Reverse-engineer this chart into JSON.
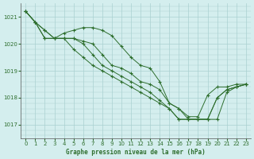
{
  "title": "Graphe pression niveau de la mer (hPa)",
  "bg_color": "#d4eeee",
  "grid_color": "#aad0d0",
  "line_color": "#2d6e2d",
  "marker_color": "#2d6e2d",
  "xlim": [
    -0.5,
    23.5
  ],
  "ylim": [
    1016.5,
    1021.5
  ],
  "yticks": [
    1017,
    1018,
    1019,
    1020,
    1021
  ],
  "xticks": [
    0,
    1,
    2,
    3,
    4,
    5,
    6,
    7,
    8,
    9,
    10,
    11,
    12,
    13,
    14,
    15,
    16,
    17,
    18,
    19,
    20,
    21,
    22,
    23
  ],
  "series": [
    [
      1021.2,
      1020.8,
      1020.5,
      1020.2,
      1020.4,
      1020.5,
      1020.6,
      1020.6,
      1020.5,
      1020.3,
      1019.9,
      1019.5,
      1019.2,
      1019.1,
      1018.6,
      1017.8,
      1017.6,
      1017.3,
      1017.3,
      1018.1,
      1018.4,
      1018.4,
      1018.5,
      1018.5
    ],
    [
      1021.2,
      1020.8,
      1020.5,
      1020.2,
      1020.2,
      1020.2,
      1020.1,
      1020.0,
      1019.6,
      1019.2,
      1019.1,
      1018.9,
      1018.6,
      1018.5,
      1018.3,
      1017.8,
      1017.6,
      1017.2,
      1017.2,
      1017.2,
      1018.0,
      1018.3,
      1018.4,
      1018.5
    ],
    [
      1021.2,
      1020.8,
      1020.2,
      1020.2,
      1020.2,
      1019.8,
      1019.5,
      1019.2,
      1019.0,
      1018.8,
      1018.6,
      1018.4,
      1018.2,
      1018.0,
      1017.8,
      1017.6,
      1017.2,
      1017.2,
      1017.2,
      1017.2,
      1017.2,
      1018.2,
      1018.4,
      1018.5
    ],
    [
      1021.2,
      1020.8,
      1020.2,
      1020.2,
      1020.2,
      1020.2,
      1020.0,
      1019.6,
      1019.2,
      1019.0,
      1018.8,
      1018.6,
      1018.4,
      1018.2,
      1017.9,
      1017.6,
      1017.2,
      1017.2,
      1017.2,
      1017.2,
      1018.0,
      1018.3,
      1018.4,
      1018.5
    ]
  ]
}
